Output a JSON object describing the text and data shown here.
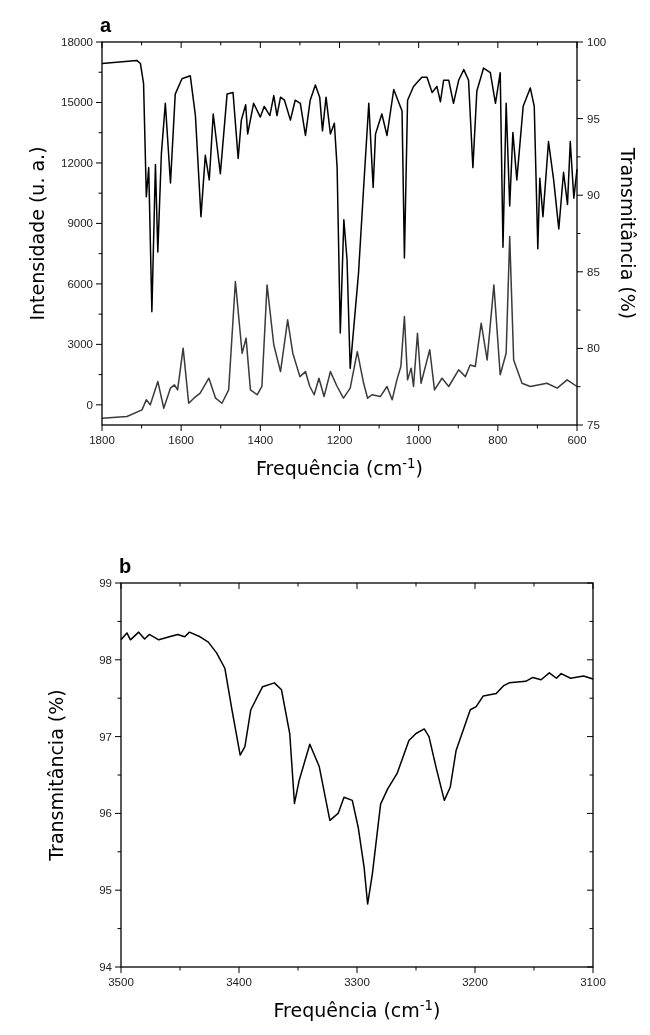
{
  "chart_data": [
    {
      "type": "line",
      "title": "a",
      "xlabel": "Frequência (cm$^{-1}$)",
      "ylabel": "Intensidade (u. a.)",
      "y2label": "Transmitância (%)",
      "xlim": [
        1800,
        600
      ],
      "ylim": [
        -1000,
        18000
      ],
      "y2lim": [
        75,
        100
      ],
      "xticks": [
        1800,
        {
          "value": 1700,
          "label": null
        },
        1600,
        {
          "value": 1500,
          "label": null
        },
        1400,
        {
          "value": 1300,
          "label": null
        },
        1200,
        {
          "value": 1100,
          "label": null
        },
        1000,
        {
          "value": 900,
          "label": null
        },
        800,
        {
          "value": 700,
          "label": null
        },
        600
      ],
      "yticks": [
        0,
        {
          "value": 1500,
          "label": null
        },
        3000,
        {
          "value": 4500,
          "label": null
        },
        6000,
        {
          "value": 7500,
          "label": null
        },
        9000,
        {
          "value": 10500,
          "label": null
        },
        12000,
        {
          "value": 13500,
          "label": null
        },
        15000,
        {
          "value": 16500,
          "label": null
        },
        18000
      ],
      "y2ticks": [
        75,
        {
          "value": 77.5,
          "label": null
        },
        80,
        {
          "value": 82.5,
          "label": null
        },
        85,
        {
          "value": 87.5,
          "label": null
        },
        90,
        {
          "value": 92.5,
          "label": null
        },
        95,
        {
          "value": 97.5,
          "label": null
        },
        100
      ],
      "series": [
        {
          "color": "#000000",
          "axis": "y2",
          "x": [
            1800,
            1712,
            1703,
            1695,
            1688,
            1682,
            1674,
            1665,
            1659,
            1650,
            1640,
            1627,
            1615,
            1598,
            1577,
            1564,
            1550,
            1539,
            1529,
            1519,
            1501,
            1484,
            1469,
            1456,
            1448,
            1437,
            1432,
            1417,
            1400,
            1390,
            1376,
            1366,
            1358,
            1349,
            1339,
            1324,
            1312,
            1299,
            1286,
            1274,
            1261,
            1250,
            1243,
            1234,
            1223,
            1213,
            1206,
            1198,
            1189,
            1181,
            1173,
            1152,
            1139,
            1126,
            1115,
            1109,
            1093,
            1080,
            1063,
            1051,
            1042,
            1036,
            1028,
            1013,
            992,
            979,
            966,
            954,
            945,
            937,
            924,
            912,
            899,
            886,
            874,
            863,
            853,
            836,
            819,
            806,
            794,
            787,
            779,
            770,
            762,
            752,
            736,
            718,
            708,
            699,
            694,
            686,
            672,
            659,
            646,
            634,
            624,
            617,
            608,
            600
          ],
          "values": [
            98.6,
            98.8,
            98.6,
            97.3,
            89.9,
            91.8,
            82.4,
            92.0,
            86.3,
            92.7,
            96.0,
            90.8,
            96.6,
            97.6,
            97.8,
            95.2,
            88.6,
            92.6,
            91.0,
            95.3,
            91.4,
            96.6,
            96.7,
            92.4,
            94.9,
            95.9,
            94.0,
            96.0,
            95.1,
            95.8,
            95.2,
            96.5,
            95.2,
            96.4,
            96.2,
            94.9,
            96.2,
            96.0,
            93.9,
            96.2,
            97.2,
            96.4,
            94.2,
            96.4,
            94.0,
            94.7,
            91.8,
            81.0,
            88.4,
            85.8,
            78.7,
            84.9,
            90.5,
            96.0,
            90.5,
            94.0,
            95.3,
            93.9,
            96.9,
            96.1,
            95.5,
            85.9,
            96.2,
            97.1,
            97.7,
            97.7,
            96.7,
            97.1,
            96.1,
            97.5,
            97.5,
            96.0,
            97.5,
            98.2,
            97.5,
            91.8,
            96.8,
            98.3,
            98.0,
            96.0,
            98.0,
            86.6,
            96.0,
            89.3,
            94.1,
            91.0,
            95.8,
            97.0,
            95.8,
            86.5,
            91.1,
            88.6,
            93.5,
            91.0,
            87.8,
            91.5,
            89.4,
            93.5,
            89.8,
            91.7
          ]
        },
        {
          "color": "#3a3a3a",
          "x": [
            1800,
            1737,
            1699,
            1688,
            1678,
            1659,
            1644,
            1627,
            1617,
            1609,
            1595,
            1581,
            1568,
            1552,
            1530,
            1513,
            1497,
            1480,
            1463,
            1446,
            1436,
            1425,
            1408,
            1396,
            1383,
            1366,
            1349,
            1331,
            1318,
            1300,
            1286,
            1275,
            1264,
            1252,
            1239,
            1223,
            1206,
            1190,
            1173,
            1155,
            1139,
            1129,
            1118,
            1097,
            1080,
            1067,
            1055,
            1045,
            1036,
            1028,
            1019,
            1013,
            1003,
            994,
            972,
            960,
            941,
            924,
            899,
            882,
            870,
            857,
            842,
            827,
            810,
            794,
            779,
            770,
            760,
            739,
            718,
            676,
            650,
            625,
            600
          ],
          "values": [
            -660,
            -580,
            -250,
            250,
            0,
            1160,
            -170,
            830,
            990,
            740,
            2810,
            80,
            330,
            580,
            1320,
            330,
            80,
            740,
            6120,
            2560,
            3310,
            740,
            500,
            910,
            5950,
            2980,
            1650,
            4220,
            2560,
            1400,
            1650,
            910,
            500,
            1320,
            410,
            1650,
            910,
            330,
            830,
            2640,
            1070,
            330,
            500,
            410,
            910,
            250,
            1240,
            1900,
            4380,
            1240,
            1820,
            910,
            3550,
            1070,
            2730,
            740,
            1320,
            910,
            1740,
            1400,
            1980,
            1900,
            4050,
            2230,
            5950,
            1490,
            2560,
            8350,
            2230,
            1070,
            910,
            1070,
            830,
            1240,
            910
          ]
        }
      ]
    },
    {
      "type": "line",
      "title": "b",
      "xlabel": "Frequência (cm$^{-1}$)",
      "ylabel": "Transmitância (%)",
      "xlim": [
        3500,
        3100
      ],
      "ylim": [
        94,
        99
      ],
      "xticks": [
        3500,
        {
          "value": 3450,
          "label": null
        },
        3400,
        {
          "value": 3350,
          "label": null
        },
        3300,
        {
          "value": 3250,
          "label": null
        },
        3200,
        {
          "value": 3150,
          "label": null
        },
        3100
      ],
      "yticks": [
        94,
        {
          "value": 94.5,
          "label": null
        },
        95,
        {
          "value": 95.5,
          "label": null
        },
        96,
        {
          "value": 96.5,
          "label": null
        },
        97,
        {
          "value": 97.5,
          "label": null
        },
        98,
        {
          "value": 98.5,
          "label": null
        },
        99
      ],
      "series": [
        {
          "color": "#000000",
          "x": [
            3500,
            3495,
            3492,
            3485,
            3480,
            3476,
            3468,
            3459,
            3452,
            3446,
            3442,
            3433,
            3426,
            3419,
            3412,
            3406,
            3399,
            3395,
            3390,
            3380,
            3370,
            3364,
            3357,
            3353,
            3349,
            3340,
            3332,
            3323,
            3316,
            3311,
            3304,
            3299,
            3294,
            3291,
            3287,
            3280,
            3274,
            3266,
            3256,
            3250,
            3243,
            3239,
            3233,
            3226,
            3221,
            3216,
            3204,
            3199,
            3193,
            3182,
            3176,
            3171,
            3157,
            3151,
            3144,
            3137,
            3131,
            3127,
            3119,
            3108,
            3100
          ],
          "values": [
            98.26,
            98.35,
            98.26,
            98.36,
            98.27,
            98.33,
            98.26,
            98.3,
            98.33,
            98.3,
            98.36,
            98.3,
            98.23,
            98.09,
            97.89,
            97.35,
            96.76,
            96.87,
            97.35,
            97.65,
            97.7,
            97.61,
            97.04,
            96.13,
            96.43,
            96.9,
            96.61,
            95.91,
            96.0,
            96.21,
            96.17,
            95.82,
            95.3,
            94.82,
            95.21,
            96.12,
            96.32,
            96.52,
            96.95,
            97.04,
            97.1,
            97.0,
            96.6,
            96.17,
            96.34,
            96.82,
            97.35,
            97.39,
            97.53,
            97.56,
            97.66,
            97.7,
            97.72,
            97.77,
            97.74,
            97.83,
            97.76,
            97.82,
            97.76,
            97.79,
            97.75
          ]
        }
      ]
    }
  ]
}
